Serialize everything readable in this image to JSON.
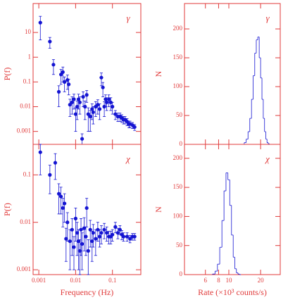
{
  "chart_data": [
    {
      "type": "scatter",
      "symbol": "γ",
      "ylabel": "P(f)",
      "log_x": true,
      "log_y": true,
      "color": "#1414d2",
      "xtick_labels": false,
      "xlim": [
        0.0007,
        0.59
      ],
      "ylim": [
        0.0003,
        148
      ],
      "xticks": [
        0.001,
        0.01,
        0.1
      ],
      "yticks": [
        10,
        1,
        0.1,
        0.01,
        0.001
      ],
      "x": [
        0.0011,
        0.002,
        0.0025,
        0.0035,
        0.004,
        0.0045,
        0.005,
        0.006,
        0.0065,
        0.007,
        0.008,
        0.009,
        0.01,
        0.011,
        0.012,
        0.013,
        0.015,
        0.016,
        0.018,
        0.02,
        0.022,
        0.025,
        0.028,
        0.03,
        0.035,
        0.04,
        0.045,
        0.05,
        0.055,
        0.06,
        0.065,
        0.07,
        0.08,
        0.09,
        0.1,
        0.12,
        0.14,
        0.16,
        0.18,
        0.2,
        0.22,
        0.25,
        0.28,
        0.3,
        0.35,
        0.4
      ],
      "values": [
        25,
        4.3,
        0.5,
        0.04,
        0.2,
        0.25,
        0.1,
        0.12,
        0.08,
        0.012,
        0.015,
        0.02,
        0.005,
        0.01,
        0.02,
        0.015,
        0.0005,
        0.025,
        0.01,
        0.03,
        0.005,
        0.004,
        0.008,
        0.006,
        0.01,
        0.012,
        0.008,
        0.15,
        0.06,
        0.01,
        0.02,
        0.015,
        0.02,
        0.015,
        0.01,
        0.005,
        0.004,
        0.004,
        0.0035,
        0.003,
        0.003,
        0.0025,
        0.002,
        0.002,
        0.0018,
        0.0015
      ],
      "errors": [
        20,
        2,
        0.3,
        0.03,
        0.12,
        0.15,
        0.06,
        0.07,
        0.05,
        0.008,
        0.01,
        0.012,
        0.004,
        0.007,
        0.012,
        0.01,
        0.0003,
        0.015,
        0.007,
        0.015,
        0.004,
        0.003,
        0.005,
        0.004,
        0.006,
        0.007,
        0.005,
        0.08,
        0.035,
        0.006,
        0.01,
        0.008,
        0.01,
        0.008,
        0.005,
        0.002,
        0.0015,
        0.0015,
        0.0012,
        0.001,
        0.001,
        0.0008,
        0.0006,
        0.0006,
        0.0005,
        0.0004
      ]
    },
    {
      "type": "histogram",
      "symbol": "γ",
      "ylabel": "N",
      "log_x": true,
      "color": "#1414d2",
      "xtick_labels": false,
      "xlim": [
        3.8,
        30.7
      ],
      "ylim": [
        0,
        244
      ],
      "xticks": [
        6,
        8,
        10,
        20
      ],
      "yticks": [
        0,
        50,
        100,
        150,
        200
      ],
      "bins": [
        14.0,
        14.6,
        15.2,
        15.8,
        16.4,
        17.0,
        17.6,
        18.2,
        18.8,
        19.4,
        20.0,
        20.6,
        21.2,
        21.8,
        22.4,
        23.0,
        23.6,
        24.2
      ],
      "values": [
        3,
        9,
        22,
        45,
        78,
        119,
        158,
        181,
        186,
        150,
        115,
        78,
        45,
        22,
        9,
        3,
        1
      ]
    },
    {
      "type": "scatter",
      "symbol": "χ",
      "ylabel": "P(f)",
      "xlabel": "Frequency (Hz)",
      "log_x": true,
      "log_y": true,
      "color": "#1414d2",
      "xtick_labels": true,
      "xlim": [
        0.0007,
        0.59
      ],
      "ylim": [
        0.00079,
        0.44
      ],
      "xticks": [
        0.001,
        0.01,
        0.1
      ],
      "yticks": [
        0.1,
        0.01,
        0.001
      ],
      "x": [
        0.0011,
        0.002,
        0.0028,
        0.0035,
        0.004,
        0.0045,
        0.005,
        0.0055,
        0.006,
        0.007,
        0.008,
        0.009,
        0.01,
        0.011,
        0.012,
        0.013,
        0.014,
        0.015,
        0.017,
        0.019,
        0.02,
        0.022,
        0.025,
        0.028,
        0.03,
        0.035,
        0.04,
        0.045,
        0.05,
        0.06,
        0.07,
        0.08,
        0.09,
        0.1,
        0.12,
        0.14,
        0.16,
        0.18,
        0.2,
        0.25,
        0.3,
        0.35,
        0.4
      ],
      "values": [
        0.3,
        0.1,
        0.18,
        0.04,
        0.035,
        0.02,
        0.025,
        0.0045,
        0.01,
        0.004,
        0.007,
        0.003,
        0.012,
        0.006,
        0.004,
        0.0025,
        0.007,
        0.0035,
        0.0075,
        0.005,
        0.02,
        0.0025,
        0.007,
        0.004,
        0.006,
        0.0045,
        0.007,
        0.005,
        0.006,
        0.007,
        0.006,
        0.005,
        0.005,
        0.0055,
        0.008,
        0.006,
        0.007,
        0.0055,
        0.005,
        0.005,
        0.0045,
        0.005,
        0.005
      ],
      "errors": [
        0.2,
        0.06,
        0.1,
        0.025,
        0.02,
        0.012,
        0.015,
        0.003,
        0.006,
        0.003,
        0.005,
        0.002,
        0.008,
        0.004,
        0.003,
        0.0018,
        0.005,
        0.0025,
        0.005,
        0.003,
        0.012,
        0.0018,
        0.004,
        0.0025,
        0.003,
        0.0025,
        0.003,
        0.002,
        0.0025,
        0.0025,
        0.002,
        0.0015,
        0.0015,
        0.0015,
        0.002,
        0.0015,
        0.0015,
        0.0012,
        0.001,
        0.001,
        0.0008,
        0.0008,
        0.0008
      ]
    },
    {
      "type": "histogram",
      "symbol": "χ",
      "ylabel": "N",
      "xlabel": "Rate (×10³ counts/s)",
      "log_x": true,
      "color": "#1414d2",
      "xtick_labels": true,
      "xlim": [
        3.8,
        30.7
      ],
      "ylim": [
        0,
        224
      ],
      "xticks": [
        6,
        8,
        10,
        20
      ],
      "yticks": [
        0,
        50,
        100,
        150,
        200
      ],
      "bins": [
        7.0,
        7.4,
        7.8,
        8.2,
        8.6,
        9.0,
        9.4,
        9.8,
        10.2,
        10.6,
        11.0,
        11.4,
        11.8,
        12.2,
        12.6,
        13.0
      ],
      "values": [
        1,
        6,
        18,
        47,
        93,
        144,
        175,
        163,
        119,
        68,
        30,
        10,
        3,
        1,
        0
      ]
    }
  ]
}
